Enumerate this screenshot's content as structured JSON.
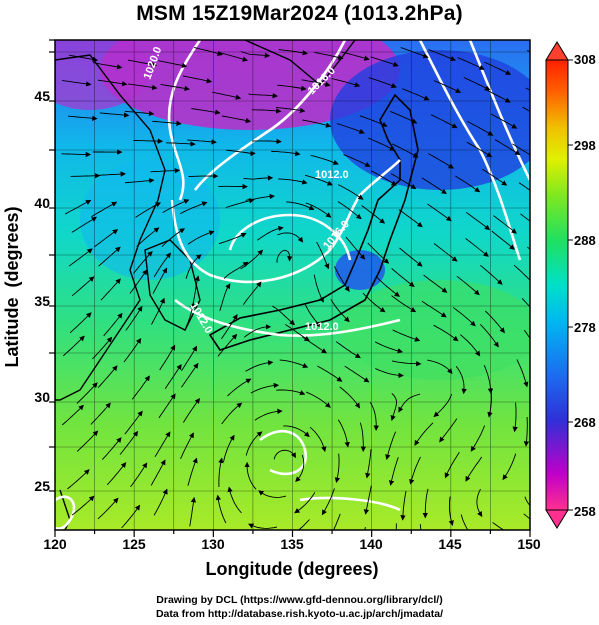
{
  "title": "MSM 15Z19Mar2024 (1013.2hPa)",
  "axes": {
    "xlabel": "Longitude (degrees)",
    "ylabel": "Latitude  (degrees)",
    "xticks": [
      "120",
      "125",
      "130",
      "135",
      "140",
      "145",
      "150"
    ],
    "yticks": [
      "25",
      "30",
      "35",
      "40",
      "45"
    ]
  },
  "colorbar": {
    "ticks": [
      "308",
      "298",
      "288",
      "278",
      "268",
      "258"
    ],
    "colors": [
      "#ff3a8c",
      "#c000c8",
      "#5040d8",
      "#2050f0",
      "#00a8f0",
      "#00e0d0",
      "#20e070",
      "#60e020",
      "#b0f000",
      "#f0f000",
      "#f0b000",
      "#ff6000",
      "#ff2000"
    ]
  },
  "map": {
    "ocean_colors": [
      "#3070f0",
      "#10c8e8",
      "#30e090",
      "#80e840",
      "#b8ec20"
    ],
    "contour_labels": [
      "1020.0",
      "1016.0",
      "1012.0",
      "1012.0",
      "1012.0",
      "1016.0"
    ],
    "contour_color": "#ffffff",
    "coast_color": "#000000"
  },
  "credits": {
    "line1": "Drawing by DCL (https://www.gfd-dennou.org/library/dcl/)",
    "line2": "Data from http://database.rish.kyoto-u.ac.jp/arch/jmadata/"
  }
}
